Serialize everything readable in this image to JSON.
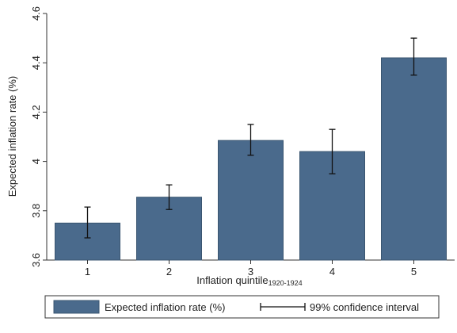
{
  "chart_data": {
    "type": "bar",
    "categories": [
      "1",
      "2",
      "3",
      "4",
      "5"
    ],
    "series": [
      {
        "name": "Expected inflation rate (%)",
        "values": [
          3.75,
          3.855,
          4.085,
          4.04,
          4.42
        ],
        "ci_low": [
          3.69,
          3.805,
          4.025,
          3.95,
          4.35
        ],
        "ci_high": [
          3.815,
          3.905,
          4.15,
          4.13,
          4.5
        ]
      }
    ],
    "xlabel": "Inflation quintile",
    "xlabel_subscript": "1920-1924",
    "ylabel": "Expected inflation rate (%)",
    "ylim": [
      3.6,
      4.6
    ],
    "yticks": [
      "3.6",
      "3.8",
      "4",
      "4.2",
      "4.4",
      "4.6"
    ],
    "ytick_values": [
      3.6,
      3.8,
      4.0,
      4.2,
      4.4,
      4.6
    ],
    "grid": false,
    "legend": {
      "placement": "bottom",
      "entries": [
        "Expected inflation rate (%)",
        "99% confidence interval"
      ]
    },
    "colors": {
      "bar": "#4a6a8c",
      "bar_edge": "#3a5570",
      "error_bar": "#111111"
    }
  }
}
